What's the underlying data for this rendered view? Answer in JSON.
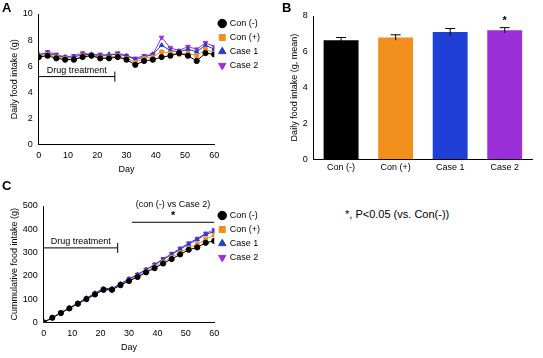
{
  "note": "*, P<0.05 (vs. Con(-))",
  "chart_data": [
    {
      "panel": "A",
      "type": "line",
      "x_label": "Day",
      "y_label": "Daily food intake (g)",
      "x": [
        0,
        3,
        6,
        9,
        12,
        15,
        18,
        21,
        24,
        27,
        30,
        33,
        36,
        39,
        42,
        45,
        48,
        51,
        54,
        57,
        60
      ],
      "xlim": [
        0,
        60
      ],
      "xticks": [
        0,
        10,
        20,
        30,
        40,
        50,
        60
      ],
      "ylim": [
        0,
        10
      ],
      "yticks": [
        0,
        2,
        4,
        6,
        8,
        10
      ],
      "grid": false,
      "legend": "right",
      "series": [
        {
          "name": "Con (-)",
          "color": "#000000",
          "marker": "circle",
          "values": [
            6.7,
            6.8,
            6.6,
            6.5,
            6.5,
            6.7,
            6.8,
            6.6,
            6.6,
            6.7,
            6.5,
            6.1,
            6.4,
            6.5,
            6.7,
            6.8,
            7.0,
            6.8,
            6.4,
            7.0,
            6.9
          ]
        },
        {
          "name": "Con (+)",
          "color": "#f28e1c",
          "marker": "square",
          "values": [
            6.8,
            6.9,
            6.7,
            6.6,
            6.5,
            6.8,
            6.8,
            6.7,
            6.7,
            6.8,
            6.6,
            6.3,
            6.6,
            6.7,
            7.1,
            7.0,
            6.9,
            7.0,
            6.8,
            7.3,
            7.0
          ]
        },
        {
          "name": "Case 1",
          "color": "#1f3fd6",
          "marker": "triangle-up",
          "values": [
            6.9,
            7.0,
            6.8,
            6.7,
            6.7,
            6.9,
            6.9,
            6.8,
            6.9,
            6.9,
            6.8,
            6.5,
            6.7,
            6.9,
            7.6,
            7.2,
            7.1,
            7.3,
            7.1,
            7.6,
            7.3
          ]
        },
        {
          "name": "Case 2",
          "color": "#9b30d9",
          "marker": "triangle-down",
          "values": [
            6.8,
            7.1,
            6.9,
            6.7,
            6.8,
            7.0,
            6.9,
            6.9,
            6.8,
            7.0,
            6.8,
            6.6,
            6.8,
            6.9,
            8.2,
            7.4,
            7.2,
            7.5,
            7.3,
            7.8,
            7.5
          ]
        }
      ],
      "annotations": [
        {
          "kind": "bracket",
          "text": "Drug treatment",
          "x": [
            0,
            26
          ],
          "y": 5.2
        }
      ]
    },
    {
      "panel": "B",
      "type": "bar",
      "y_label": "Daily food intake (g, mean)",
      "categories": [
        "Con (-)",
        "Con (+)",
        "Case 1",
        "Case 2"
      ],
      "values": [
        6.65,
        6.8,
        7.1,
        7.2
      ],
      "errors": [
        0.15,
        0.15,
        0.2,
        0.15
      ],
      "significance": [
        null,
        null,
        null,
        "*"
      ],
      "colors": [
        "#000000",
        "#f28e1c",
        "#1f3fd6",
        "#9b30d9"
      ],
      "ylim": [
        0,
        8
      ],
      "yticks": [
        0,
        2,
        4,
        6,
        8
      ],
      "grid": false
    },
    {
      "panel": "C",
      "type": "line",
      "x_label": "Day",
      "y_label": "Cummulative food intake (g)",
      "x": [
        0,
        3,
        6,
        9,
        12,
        15,
        18,
        21,
        24,
        27,
        30,
        33,
        36,
        39,
        42,
        45,
        48,
        51,
        54,
        57,
        60
      ],
      "xlim": [
        0,
        60
      ],
      "xticks": [
        0,
        10,
        20,
        30,
        40,
        50,
        60
      ],
      "ylim": [
        0,
        500
      ],
      "yticks": [
        0,
        100,
        200,
        300,
        400,
        500
      ],
      "grid": false,
      "legend": "right",
      "series": [
        {
          "name": "Con (-)",
          "color": "#000000",
          "marker": "circle",
          "values": [
            0,
            20,
            40,
            60,
            80,
            100,
            120,
            140,
            140,
            160,
            178,
            195,
            215,
            233,
            253,
            272,
            292,
            312,
            322,
            342,
            350
          ]
        },
        {
          "name": "Con (+)",
          "color": "#f28e1c",
          "marker": "square",
          "values": [
            0,
            21,
            41,
            61,
            81,
            101,
            121,
            141,
            141,
            161,
            180,
            198,
            218,
            238,
            260,
            280,
            300,
            320,
            335,
            358,
            375
          ]
        },
        {
          "name": "Case 1",
          "color": "#1f3fd6",
          "marker": "triangle-up",
          "values": [
            0,
            21,
            42,
            62,
            83,
            104,
            125,
            145,
            145,
            166,
            186,
            205,
            226,
            247,
            270,
            292,
            314,
            336,
            356,
            378,
            390
          ]
        },
        {
          "name": "Case 2",
          "color": "#9b30d9",
          "marker": "triangle-down",
          "values": [
            0,
            21,
            42,
            63,
            83,
            104,
            125,
            145,
            145,
            166,
            187,
            206,
            227,
            249,
            273,
            295,
            318,
            340,
            360,
            382,
            398
          ]
        }
      ],
      "annotations": [
        {
          "kind": "bracket",
          "text": "Drug treatment",
          "x": [
            0,
            26
          ],
          "y": 320
        },
        {
          "kind": "significance",
          "text": "*",
          "label": "(con (-) vs Case 2)",
          "x": [
            31,
            60
          ],
          "y": 430
        }
      ]
    }
  ]
}
